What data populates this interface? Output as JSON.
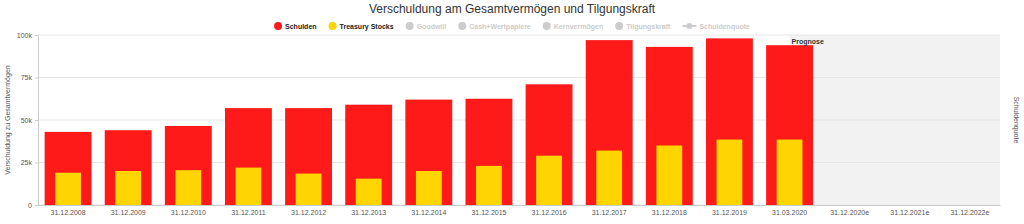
{
  "chart_data": {
    "type": "bar",
    "title": "Verschuldung am Gesamtvermögen und Tilgungskraft",
    "ylabel": "Verschuldung zu Gesamtvermögen",
    "y2label": "Schuldenquote",
    "categories": [
      "31.12.2008",
      "31.12.2009",
      "31.12.2010",
      "31.12.2011",
      "31.12.2012",
      "31.12.2013",
      "31.12.2014",
      "31.12.2015",
      "31.12.2016",
      "31.12.2017",
      "31.12.2018",
      "31.12.2019",
      "31.03.2020",
      "31.12.2020e",
      "31.12.2021e",
      "31.12.2022e"
    ],
    "series": [
      {
        "name": "Schulden",
        "color": "#ff1a1a",
        "values": [
          43000,
          44000,
          46500,
          57000,
          57000,
          59000,
          62000,
          62500,
          71000,
          97000,
          93000,
          98000,
          94000,
          null,
          null,
          null
        ]
      },
      {
        "name": "Treasury Stocks",
        "color": "#ffd500",
        "values": [
          19000,
          20000,
          20500,
          22000,
          18500,
          15500,
          20000,
          23000,
          29000,
          32000,
          35000,
          38500,
          38500,
          null,
          null,
          null
        ]
      },
      {
        "name": "Goodwill",
        "color": "#cccccc",
        "values": [
          null,
          null,
          null,
          null,
          null,
          null,
          null,
          null,
          null,
          null,
          null,
          null,
          null,
          null,
          null,
          null
        ]
      },
      {
        "name": "Cash+Wertpapiere",
        "color": "#cccccc",
        "values": [
          null,
          null,
          null,
          null,
          null,
          null,
          null,
          null,
          null,
          null,
          null,
          null,
          null,
          null,
          null,
          null
        ]
      },
      {
        "name": "Kernvermögen",
        "color": "#cccccc",
        "values": [
          null,
          null,
          null,
          null,
          null,
          null,
          null,
          null,
          null,
          null,
          null,
          null,
          null,
          null,
          null,
          null
        ]
      },
      {
        "name": "Tilgungskraft",
        "color": "#cccccc",
        "values": [
          null,
          null,
          null,
          null,
          null,
          null,
          null,
          null,
          null,
          null,
          null,
          null,
          null,
          null,
          null,
          null
        ]
      },
      {
        "name": "Schuldenquote",
        "color": "#cccccc",
        "type": "line",
        "values": [
          null,
          null,
          null,
          null,
          null,
          null,
          null,
          null,
          null,
          null,
          null,
          null,
          null,
          null,
          null,
          null
        ]
      }
    ],
    "ylim": [
      0,
      100000
    ],
    "yticks": [
      0,
      {
        "value": 25000,
        "label": "25k"
      },
      {
        "value": 50000,
        "label": "50k"
      },
      {
        "value": 75000,
        "label": "75k"
      },
      {
        "value": 100000,
        "label": "100k"
      }
    ],
    "grid": true,
    "legend": "top",
    "annotations": [
      {
        "text": "Prognose",
        "category": "31.03.2020"
      }
    ]
  }
}
